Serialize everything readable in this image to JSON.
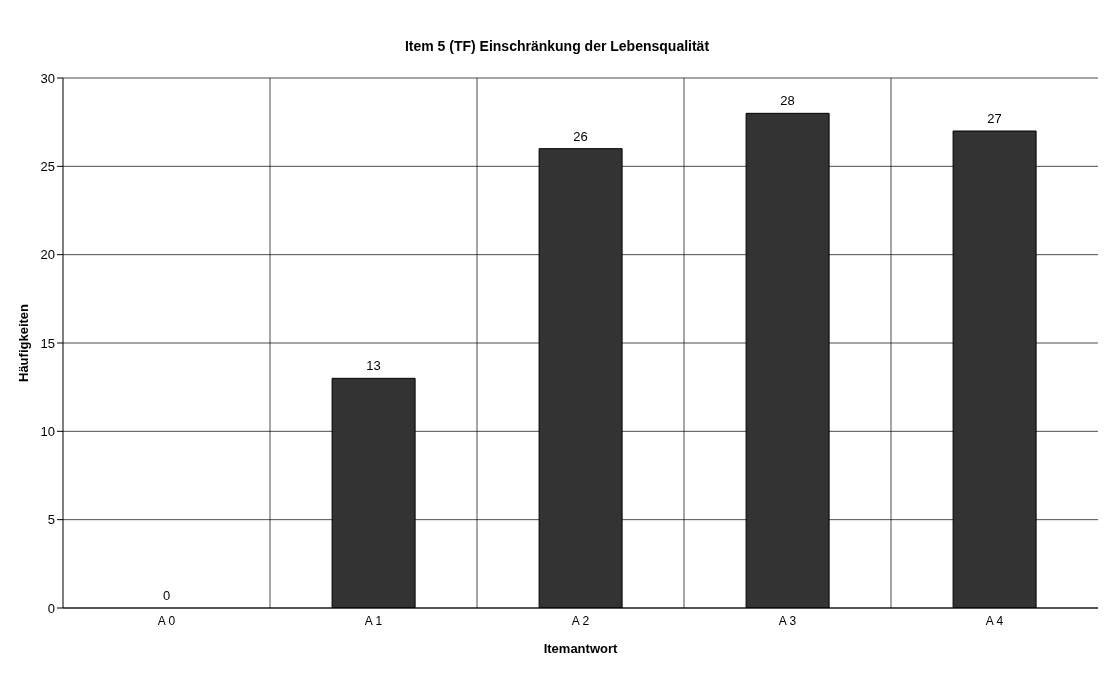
{
  "chart_data": {
    "type": "bar",
    "title": "Item 5 (TF) Einschränkung der Lebensqualität",
    "xlabel": "Itemantwort",
    "ylabel": "Häufigkeiten",
    "categories": [
      "A 0",
      "A 1",
      "A 2",
      "A 3",
      "A 4"
    ],
    "values": [
      0,
      13,
      26,
      28,
      27
    ],
    "color": "#333333",
    "ylim": [
      0,
      30
    ],
    "yticks": [
      0,
      5,
      10,
      15,
      20,
      25,
      30
    ],
    "grid": true,
    "data_labels": true
  }
}
